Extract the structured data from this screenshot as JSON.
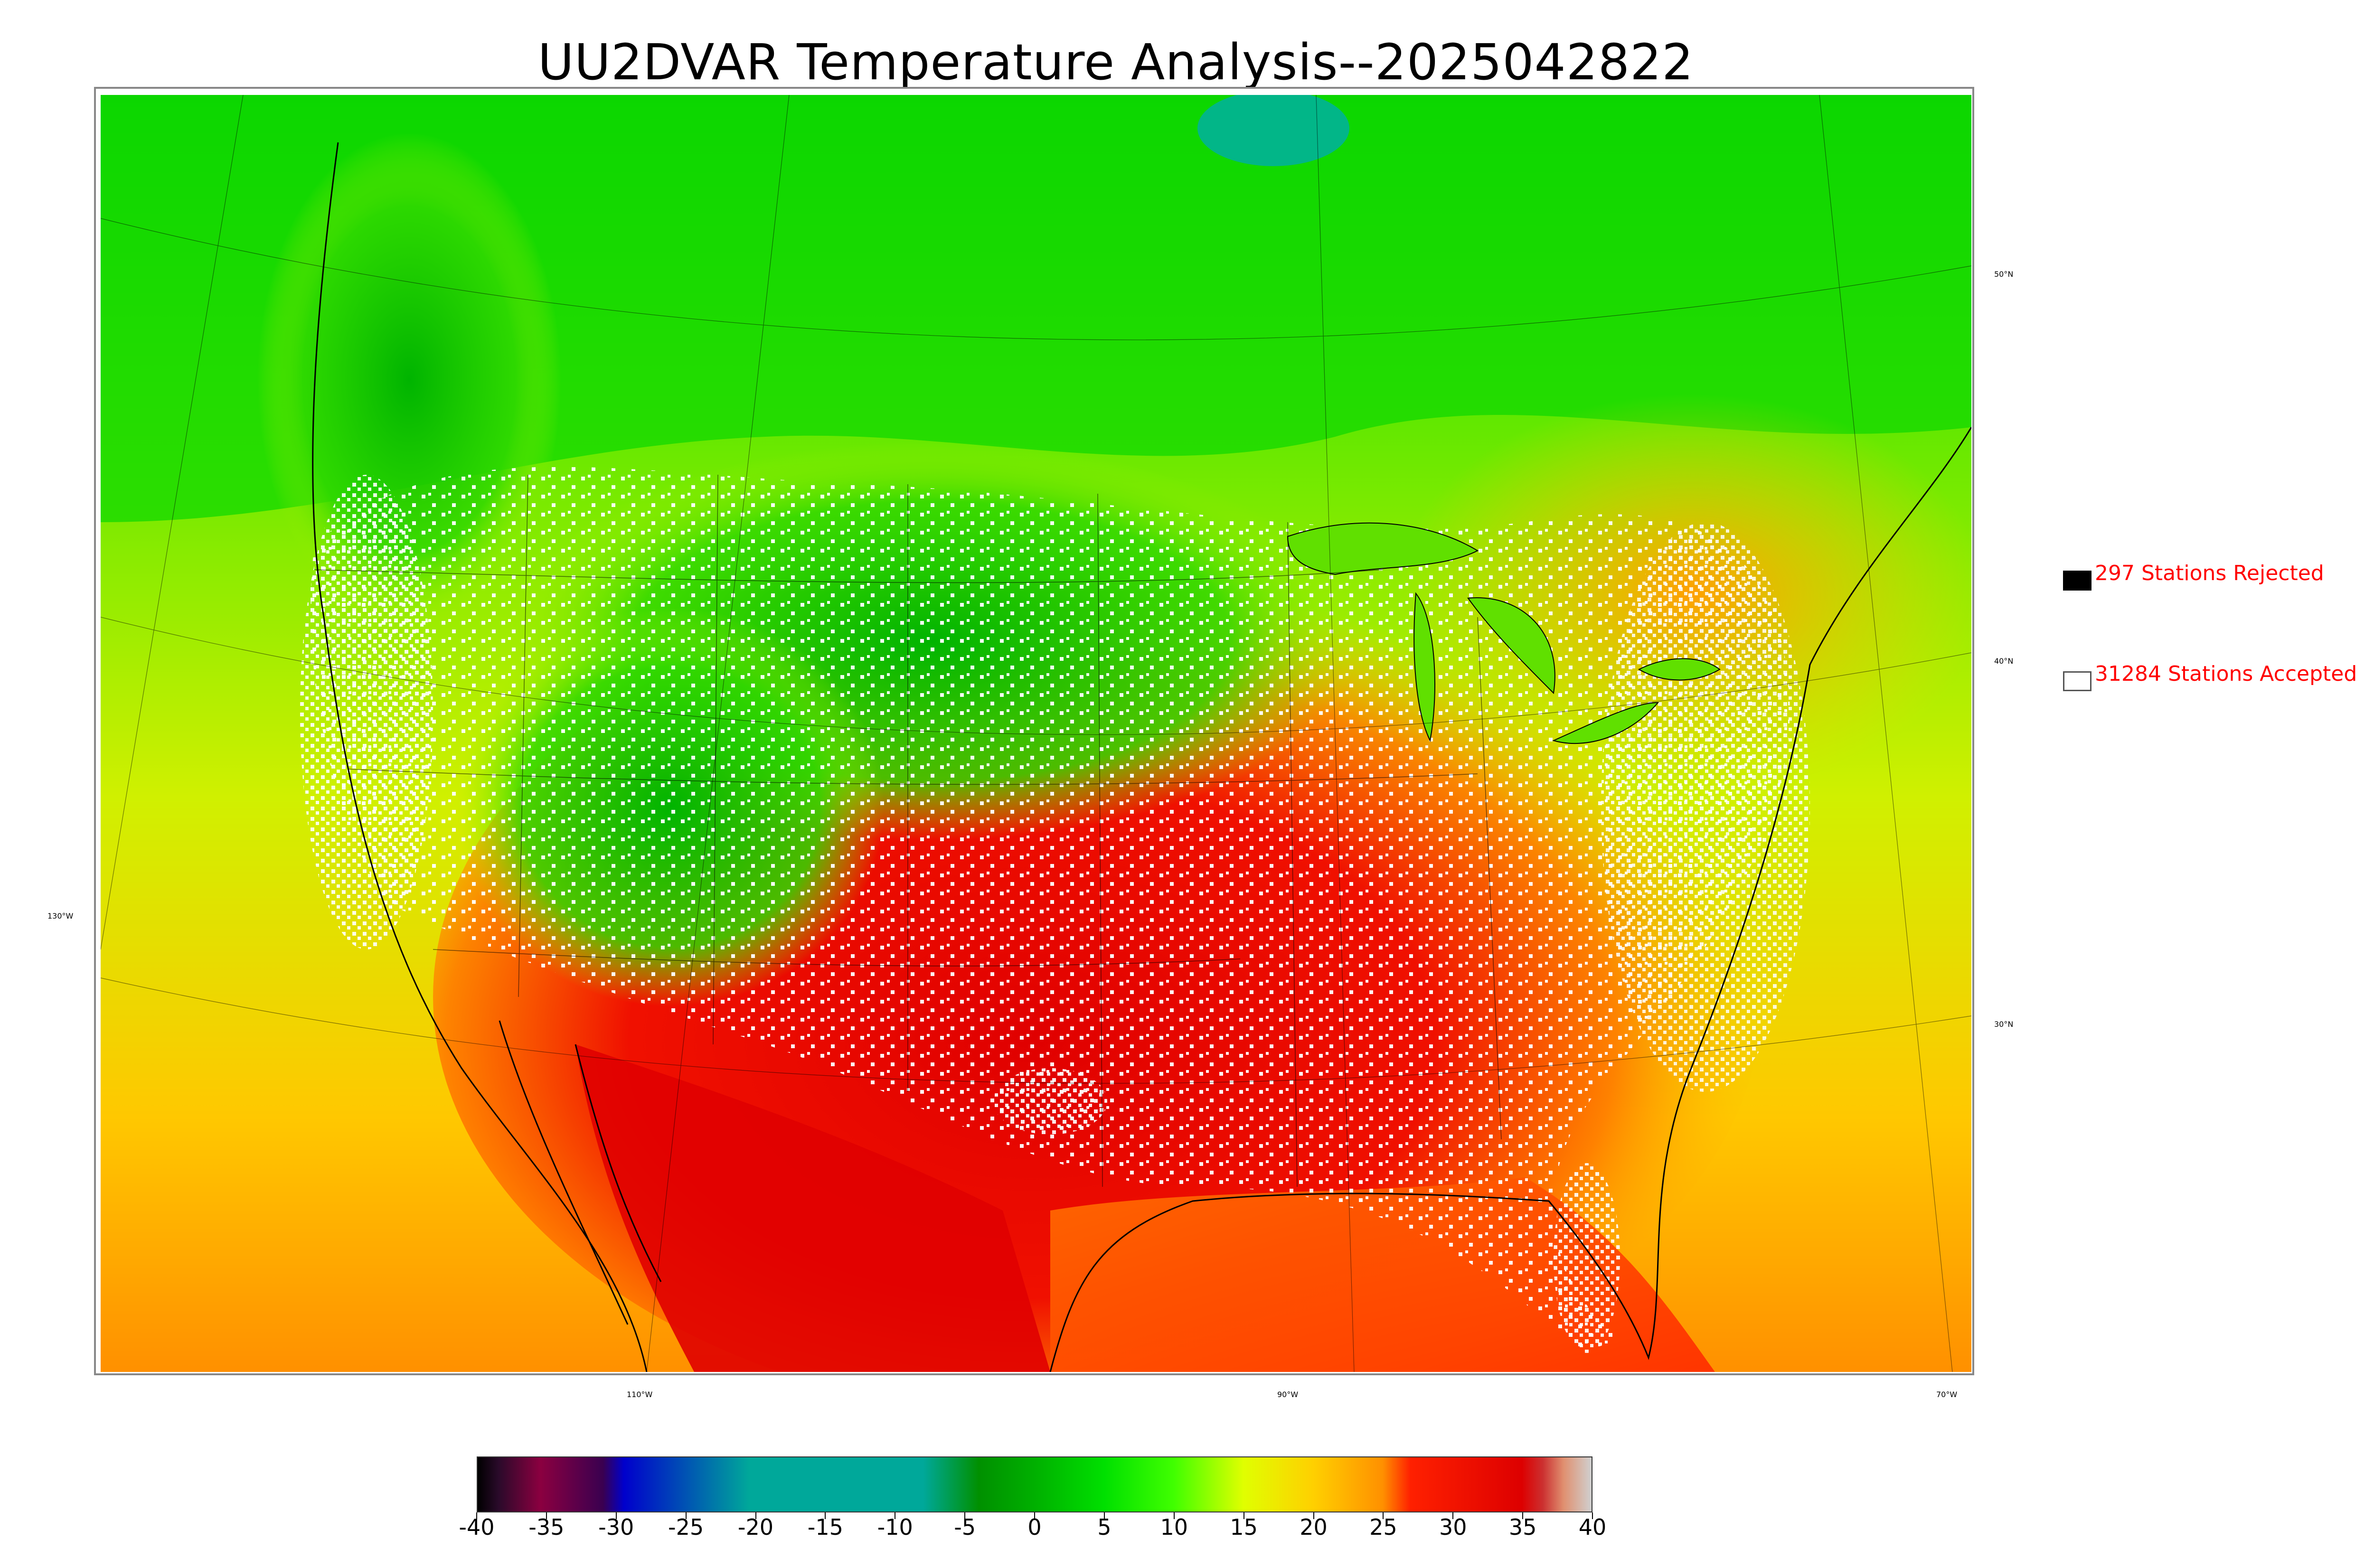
{
  "title": "UU2DVAR Temperature Analysis--2025042822",
  "legend": {
    "rejected": {
      "text": "297 Stations Rejected",
      "swatch_color": "#000000"
    },
    "accepted": {
      "text": "31284 Stations Accepted",
      "swatch_color": "#ffffff"
    }
  },
  "longitude_labels": [
    "130°W",
    "110°W",
    "90°W",
    "70°W"
  ],
  "latitude_labels": [
    "50°N",
    "40°N",
    "30°N"
  ],
  "colorbar": {
    "ticks": [
      "-40",
      "-35",
      "-30",
      "-25",
      "-20",
      "-15",
      "-10",
      "-5",
      "0",
      "5",
      "10",
      "15",
      "20",
      "25",
      "30",
      "35",
      "40"
    ],
    "stops": [
      {
        "value": -40,
        "color": "#000000"
      },
      {
        "value": -38.5,
        "color": "#2a0a2a"
      },
      {
        "value": -35.5,
        "color": "#8b0040"
      },
      {
        "value": -31,
        "color": "#3a0050"
      },
      {
        "value": -29.5,
        "color": "#0000cc"
      },
      {
        "value": -20.5,
        "color": "#00a89a"
      },
      {
        "value": -8,
        "color": "#00a89a"
      },
      {
        "value": -4,
        "color": "#009000"
      },
      {
        "value": 0,
        "color": "#00b000"
      },
      {
        "value": 5,
        "color": "#00e000"
      },
      {
        "value": 10,
        "color": "#40ff00"
      },
      {
        "value": 15,
        "color": "#e0ff00"
      },
      {
        "value": 20,
        "color": "#ffd000"
      },
      {
        "value": 25,
        "color": "#ff9000"
      },
      {
        "value": 27,
        "color": "#ff2000"
      },
      {
        "value": 35,
        "color": "#dd0000"
      },
      {
        "value": 36.5,
        "color": "#cc3030"
      },
      {
        "value": 38,
        "color": "#e09070"
      },
      {
        "value": 40,
        "color": "#d0d0d0"
      }
    ]
  },
  "colors": {
    "cool_north": "#00cc00",
    "warm_south": "#e00000",
    "ocean_west": "#d8e800",
    "ocean_gulf": "#ff8000"
  }
}
